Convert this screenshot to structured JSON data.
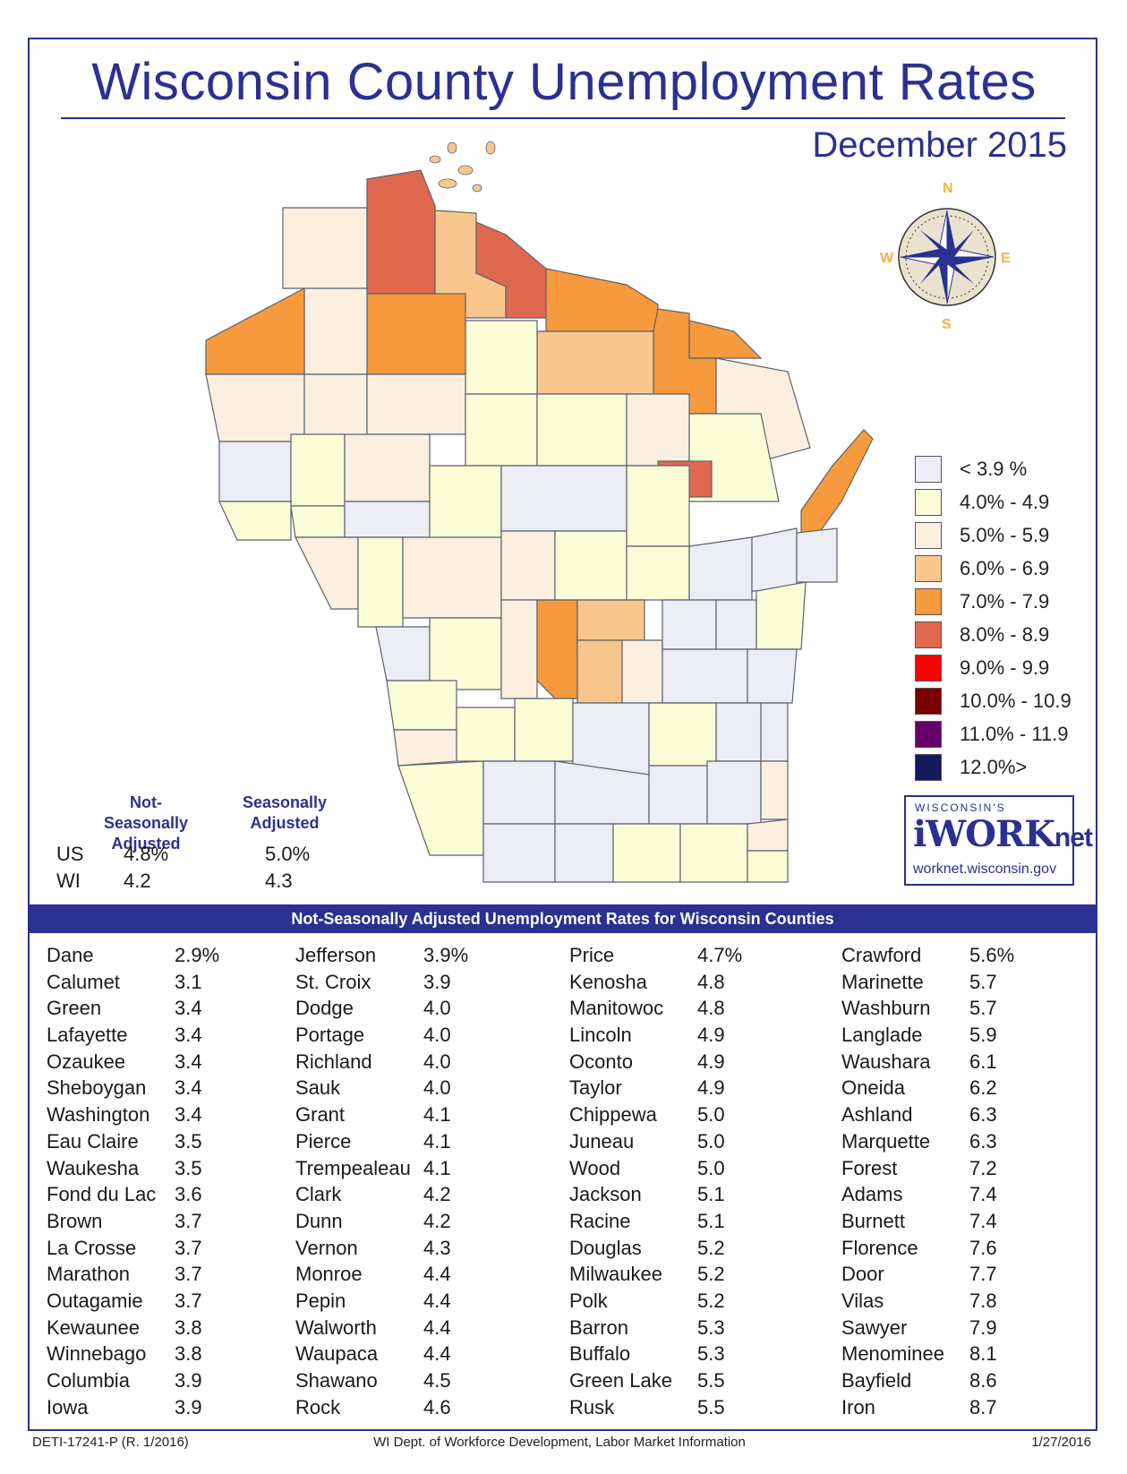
{
  "header": {
    "title": "Wisconsin County Unemployment Rates",
    "subtitle": "December 2015"
  },
  "compass": {
    "icon": "compass-rose-icon",
    "n": "N",
    "s": "S",
    "e": "E",
    "w": "W"
  },
  "legend": [
    {
      "label": "< 3.9 %",
      "color": "#ededf5"
    },
    {
      "label": "4.0% - 4.9",
      "color": "#fbfdd6"
    },
    {
      "label": "5.0% - 5.9",
      "color": "#fcefdf"
    },
    {
      "label": "6.0% - 6.9",
      "color": "#f9c78e"
    },
    {
      "label": "7.0% - 7.9",
      "color": "#f7993d"
    },
    {
      "label": "8.0% - 8.9",
      "color": "#e0684f"
    },
    {
      "label": "9.0% - 9.9",
      "color": "#ff0000"
    },
    {
      "label": "10.0% - 10.9",
      "color": "#7a0000"
    },
    {
      "label": "11.0% - 11.9",
      "color": "#660066"
    },
    {
      "label": "12.0%>",
      "color": "#141a5c"
    }
  ],
  "stats": {
    "nsa_header": "Not-Seasonally Adjusted",
    "sa_header": "Seasonally Adjusted",
    "rows": [
      {
        "region": "US",
        "nsa": "4.8%",
        "sa": "5.0%"
      },
      {
        "region": "WI",
        "nsa": "4.2",
        "sa": "4.3"
      }
    ]
  },
  "worknet": {
    "top": "WISCONSIN'S",
    "logo_main": "iWORK",
    "logo_suffix": "net",
    "url": "worknet.wisconsin.gov"
  },
  "table": {
    "title": "Not-Seasonally Adjusted Unemployment Rates for Wisconsin Counties",
    "columns": [
      [
        {
          "county": "Dane",
          "rate": "2.9%"
        },
        {
          "county": "Calumet",
          "rate": "3.1"
        },
        {
          "county": "Green",
          "rate": "3.4"
        },
        {
          "county": "Lafayette",
          "rate": "3.4"
        },
        {
          "county": "Ozaukee",
          "rate": "3.4"
        },
        {
          "county": "Sheboygan",
          "rate": "3.4"
        },
        {
          "county": "Washington",
          "rate": "3.4"
        },
        {
          "county": "Eau Claire",
          "rate": "3.5"
        },
        {
          "county": "Waukesha",
          "rate": "3.5"
        },
        {
          "county": "Fond du Lac",
          "rate": "3.6"
        },
        {
          "county": "Brown",
          "rate": "3.7"
        },
        {
          "county": "La Crosse",
          "rate": "3.7"
        },
        {
          "county": "Marathon",
          "rate": "3.7"
        },
        {
          "county": "Outagamie",
          "rate": "3.7"
        },
        {
          "county": "Kewaunee",
          "rate": "3.8"
        },
        {
          "county": "Winnebago",
          "rate": "3.8"
        },
        {
          "county": "Columbia",
          "rate": "3.9"
        },
        {
          "county": "Iowa",
          "rate": "3.9"
        }
      ],
      [
        {
          "county": "Jefferson",
          "rate": "3.9%"
        },
        {
          "county": "St. Croix",
          "rate": "3.9"
        },
        {
          "county": "Dodge",
          "rate": "4.0"
        },
        {
          "county": "Portage",
          "rate": "4.0"
        },
        {
          "county": "Richland",
          "rate": "4.0"
        },
        {
          "county": "Sauk",
          "rate": "4.0"
        },
        {
          "county": "Grant",
          "rate": "4.1"
        },
        {
          "county": "Pierce",
          "rate": "4.1"
        },
        {
          "county": "Trempealeau",
          "rate": "4.1"
        },
        {
          "county": "Clark",
          "rate": "4.2"
        },
        {
          "county": "Dunn",
          "rate": "4.2"
        },
        {
          "county": "Vernon",
          "rate": "4.3"
        },
        {
          "county": "Monroe",
          "rate": "4.4"
        },
        {
          "county": "Pepin",
          "rate": "4.4"
        },
        {
          "county": "Walworth",
          "rate": "4.4"
        },
        {
          "county": "Waupaca",
          "rate": "4.4"
        },
        {
          "county": "Shawano",
          "rate": "4.5"
        },
        {
          "county": "Rock",
          "rate": "4.6"
        }
      ],
      [
        {
          "county": "Price",
          "rate": "4.7%"
        },
        {
          "county": "Kenosha",
          "rate": "4.8"
        },
        {
          "county": "Manitowoc",
          "rate": "4.8"
        },
        {
          "county": "Lincoln",
          "rate": "4.9"
        },
        {
          "county": "Oconto",
          "rate": "4.9"
        },
        {
          "county": "Taylor",
          "rate": "4.9"
        },
        {
          "county": "Chippewa",
          "rate": "5.0"
        },
        {
          "county": "Juneau",
          "rate": "5.0"
        },
        {
          "county": "Wood",
          "rate": "5.0"
        },
        {
          "county": "Jackson",
          "rate": "5.1"
        },
        {
          "county": "Racine",
          "rate": "5.1"
        },
        {
          "county": "Douglas",
          "rate": "5.2"
        },
        {
          "county": "Milwaukee",
          "rate": "5.2"
        },
        {
          "county": "Polk",
          "rate": "5.2"
        },
        {
          "county": "Barron",
          "rate": "5.3"
        },
        {
          "county": "Buffalo",
          "rate": "5.3"
        },
        {
          "county": "Green Lake",
          "rate": "5.5"
        },
        {
          "county": "Rusk",
          "rate": "5.5"
        }
      ],
      [
        {
          "county": "Crawford",
          "rate": "5.6%"
        },
        {
          "county": "Marinette",
          "rate": "5.7"
        },
        {
          "county": "Washburn",
          "rate": "5.7"
        },
        {
          "county": "Langlade",
          "rate": "5.9"
        },
        {
          "county": "Waushara",
          "rate": "6.1"
        },
        {
          "county": "Oneida",
          "rate": "6.2"
        },
        {
          "county": "Ashland",
          "rate": "6.3"
        },
        {
          "county": "Marquette",
          "rate": "6.3"
        },
        {
          "county": "Forest",
          "rate": "7.2"
        },
        {
          "county": "Adams",
          "rate": "7.4"
        },
        {
          "county": "Burnett",
          "rate": "7.4"
        },
        {
          "county": "Florence",
          "rate": "7.6"
        },
        {
          "county": "Door",
          "rate": "7.7"
        },
        {
          "county": "Vilas",
          "rate": "7.8"
        },
        {
          "county": "Sawyer",
          "rate": "7.9"
        },
        {
          "county": "Menominee",
          "rate": "8.1"
        },
        {
          "county": "Bayfield",
          "rate": "8.6"
        },
        {
          "county": "Iron",
          "rate": "8.7"
        }
      ]
    ]
  },
  "footer": {
    "left": "DETI-17241-P (R. 1/2016)",
    "center": "WI Dept. of Workforce Development, Labor Market Information",
    "right": "1/27/2016"
  }
}
